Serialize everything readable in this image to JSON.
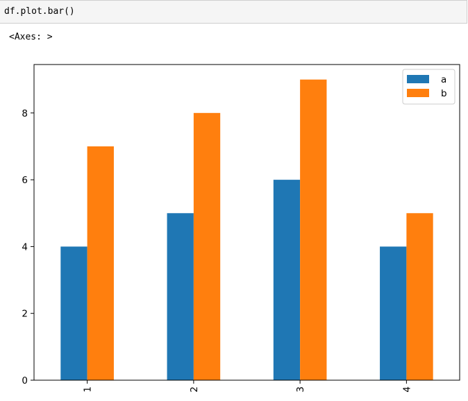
{
  "notebook": {
    "code_cell": {
      "source": "df.plot.bar()"
    },
    "output": {
      "text": "<Axes: >"
    }
  },
  "chart_data": {
    "type": "bar",
    "categories": [
      "1",
      "2",
      "3",
      "4"
    ],
    "series": [
      {
        "name": "a",
        "values": [
          4,
          5,
          6,
          4
        ],
        "color": "#1f77b4"
      },
      {
        "name": "b",
        "values": [
          7,
          8,
          9,
          5
        ],
        "color": "#ff7f0e"
      }
    ],
    "title": "",
    "xlabel": "",
    "ylabel": "",
    "ylim": [
      0,
      9.45
    ],
    "yticks": [
      0,
      2,
      4,
      6,
      8
    ],
    "xtick_rotation": "vertical",
    "grid": false,
    "legend_position": "upper right"
  }
}
